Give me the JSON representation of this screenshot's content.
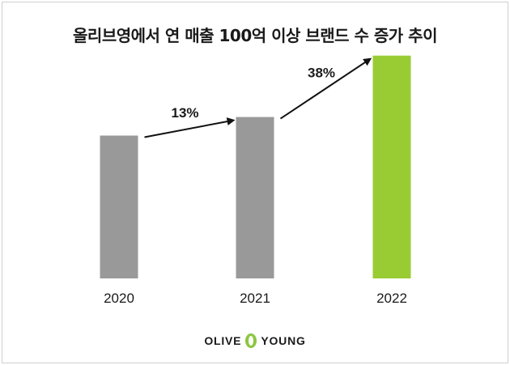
{
  "title": "올리브영에서 연 매출 100억 이상 브랜드 수 증가 추이",
  "chart_data": {
    "type": "bar",
    "title": "올리브영에서 연 매출 100억 이상 브랜드 수 증가 추이",
    "xlabel": "",
    "ylabel": "",
    "categories": [
      "2020",
      "2021",
      "2022"
    ],
    "values": [
      100,
      113,
      156
    ],
    "colors": [
      "#999999",
      "#999999",
      "#99cc33"
    ],
    "growth_labels": [
      "13%",
      "38%"
    ],
    "ylim": [
      0,
      170
    ],
    "grid": false,
    "legend": "none"
  },
  "brand": {
    "left": "OLIVE",
    "right": "YOUNG",
    "mark_color": "#8cc63f"
  }
}
